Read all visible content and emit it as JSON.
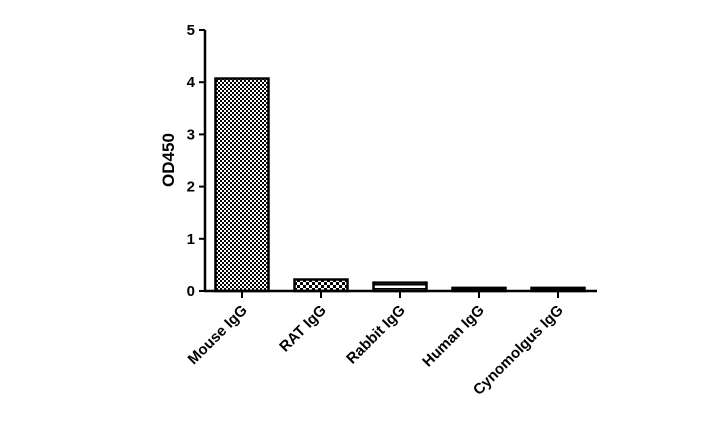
{
  "chart_data": {
    "type": "bar",
    "title": "",
    "xlabel": "",
    "ylabel": "OD450",
    "ylim": [
      0,
      5
    ],
    "yticks": [
      0,
      1,
      2,
      3,
      4,
      5
    ],
    "grid": false,
    "categories": [
      "Mouse IgG",
      "RAT IgG",
      "Rabbit IgG",
      "Human IgG",
      "Cynomolgus IgG"
    ],
    "values": [
      4.07,
      0.22,
      0.16,
      0.06,
      0.06
    ],
    "patterns": [
      "dense-checker",
      "checker",
      "horizontal-lines",
      "solid-black",
      "solid-black"
    ]
  }
}
